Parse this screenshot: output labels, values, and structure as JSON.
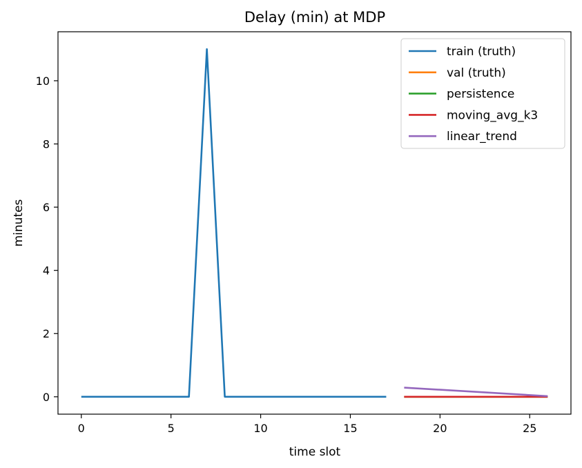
{
  "chart_data": {
    "type": "line",
    "title": "Delay (min) at MDP",
    "xlabel": "time slot",
    "ylabel": "minutes",
    "xlim": [
      -1.3,
      27.3
    ],
    "ylim": [
      -0.55,
      11.55
    ],
    "xticks": [
      0,
      5,
      10,
      15,
      20,
      25
    ],
    "yticks": [
      0,
      2,
      4,
      6,
      8,
      10
    ],
    "grid": false,
    "legend_position": "upper right",
    "series": [
      {
        "name": "train (truth)",
        "color": "#1f77b4",
        "x": [
          0,
          1,
          2,
          3,
          4,
          5,
          6,
          7,
          8,
          9,
          10,
          11,
          12,
          13,
          14,
          15,
          16,
          17
        ],
        "y": [
          0,
          0,
          0,
          0,
          0,
          0,
          0,
          11,
          0,
          0,
          0,
          0,
          0,
          0,
          0,
          0,
          0,
          0
        ]
      },
      {
        "name": "val (truth)",
        "color": "#ff7f0e",
        "x": [
          18,
          19,
          20,
          21,
          22,
          23,
          24,
          25,
          26
        ],
        "y": [
          0,
          0,
          0,
          0,
          0,
          0,
          0,
          0,
          0
        ]
      },
      {
        "name": "persistence",
        "color": "#2ca02c",
        "x": [
          18,
          19,
          20,
          21,
          22,
          23,
          24,
          25,
          26
        ],
        "y": [
          0,
          0,
          0,
          0,
          0,
          0,
          0,
          0,
          0
        ]
      },
      {
        "name": "moving_avg_k3",
        "color": "#d62728",
        "x": [
          18,
          19,
          20,
          21,
          22,
          23,
          24,
          25,
          26
        ],
        "y": [
          0,
          0,
          0,
          0,
          0,
          0,
          0,
          0,
          0
        ]
      },
      {
        "name": "linear_trend",
        "color": "#9467bd",
        "x": [
          18,
          26
        ],
        "y": [
          0.29,
          0.02
        ]
      }
    ]
  }
}
